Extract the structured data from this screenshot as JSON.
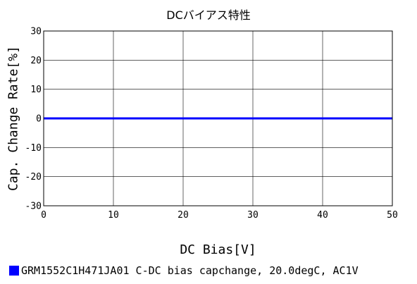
{
  "chart_data": {
    "type": "line",
    "title": "DCバイアス特性",
    "xlabel": "DC Bias[V]",
    "ylabel": "Cap. Change Rate[%]",
    "xlim": [
      0,
      50
    ],
    "ylim": [
      -30,
      30
    ],
    "xticks": [
      0,
      10,
      20,
      30,
      40,
      50
    ],
    "yticks": [
      -30,
      -20,
      -10,
      0,
      10,
      20,
      30
    ],
    "grid": true,
    "legend_position": "bottom-left",
    "series": [
      {
        "name": "GRM1552C1H471JA01 C-DC bias capchange, 20.0degC, AC1V",
        "color": "#0000ff",
        "x": [
          0,
          5,
          10,
          15,
          20,
          25,
          30,
          35,
          40,
          45,
          50
        ],
        "y": [
          0,
          0,
          0,
          0,
          0,
          0,
          0,
          0,
          0,
          0,
          0
        ]
      }
    ]
  }
}
